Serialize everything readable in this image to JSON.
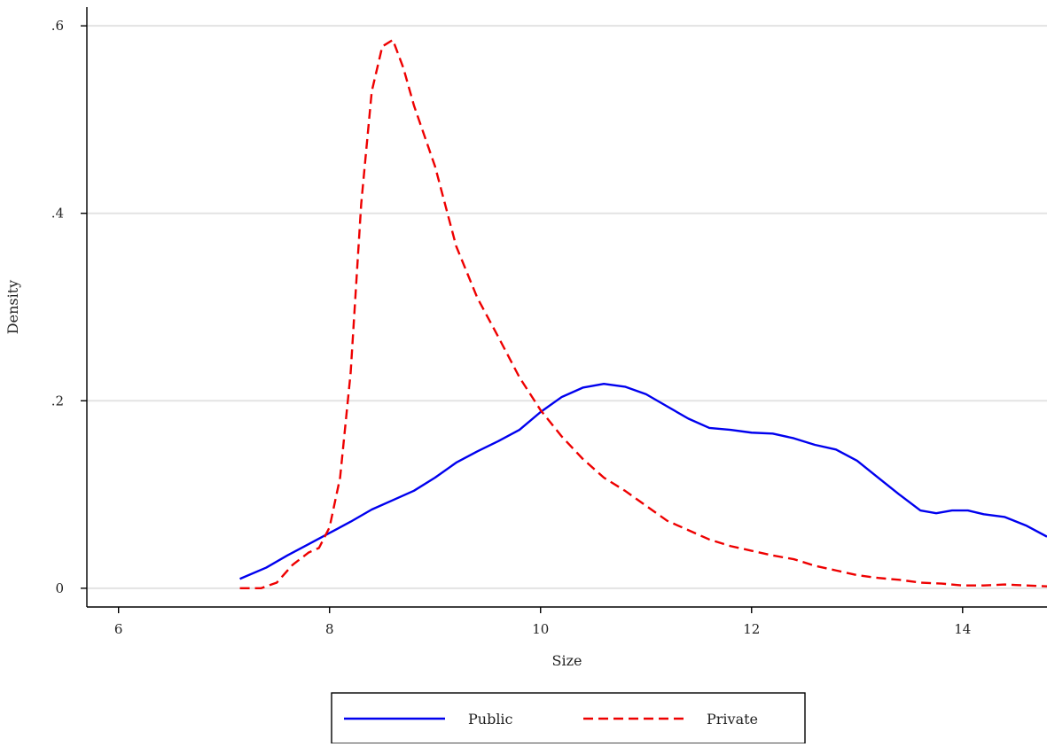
{
  "chart_data": {
    "type": "line",
    "title": "",
    "xlabel": "Size",
    "ylabel": "Density",
    "xlim": [
      5.7,
      14.8
    ],
    "ylim": [
      -0.02,
      0.62
    ],
    "x_ticks": [
      6,
      8,
      10,
      12,
      14
    ],
    "x_tick_labels": [
      "6",
      "8",
      "10",
      "12",
      "14"
    ],
    "y_ticks": [
      0,
      0.2,
      0.4,
      0.6
    ],
    "y_tick_labels": [
      "0",
      ".2",
      ".4",
      ".6"
    ],
    "grid": "horizontal",
    "legend_position": "bottom",
    "series": [
      {
        "name": "Public",
        "color": "#0000ee",
        "style": "solid",
        "x": [
          7.15,
          7.4,
          7.6,
          7.8,
          8.0,
          8.2,
          8.4,
          8.6,
          8.8,
          9.0,
          9.2,
          9.4,
          9.6,
          9.8,
          10.0,
          10.2,
          10.4,
          10.6,
          10.8,
          11.0,
          11.2,
          11.4,
          11.6,
          11.8,
          12.0,
          12.2,
          12.4,
          12.6,
          12.8,
          13.0,
          13.2,
          13.4,
          13.6,
          13.75,
          13.9,
          14.05,
          14.2,
          14.4,
          14.6,
          14.8
        ],
        "y": [
          0.01,
          0.022,
          0.035,
          0.047,
          0.059,
          0.071,
          0.084,
          0.094,
          0.104,
          0.118,
          0.134,
          0.146,
          0.157,
          0.169,
          0.188,
          0.204,
          0.214,
          0.218,
          0.215,
          0.207,
          0.194,
          0.181,
          0.171,
          0.169,
          0.166,
          0.165,
          0.16,
          0.153,
          0.148,
          0.136,
          0.118,
          0.1,
          0.083,
          0.08,
          0.083,
          0.083,
          0.079,
          0.076,
          0.067,
          0.055
        ]
      },
      {
        "name": "Private",
        "color": "#ee0000",
        "style": "dashed",
        "x": [
          7.15,
          7.35,
          7.5,
          7.65,
          7.8,
          7.9,
          8.0,
          8.1,
          8.2,
          8.3,
          8.4,
          8.5,
          8.6,
          8.7,
          8.8,
          9.0,
          9.2,
          9.4,
          9.6,
          9.8,
          10.0,
          10.2,
          10.4,
          10.6,
          10.8,
          11.0,
          11.2,
          11.4,
          11.6,
          11.8,
          12.0,
          12.2,
          12.4,
          12.6,
          12.8,
          13.0,
          13.2,
          13.4,
          13.6,
          13.8,
          14.0,
          14.2,
          14.4,
          14.6,
          14.8
        ],
        "y": [
          0.0,
          0.0,
          0.006,
          0.025,
          0.038,
          0.043,
          0.065,
          0.118,
          0.23,
          0.41,
          0.53,
          0.578,
          0.585,
          0.555,
          0.515,
          0.45,
          0.365,
          0.31,
          0.268,
          0.225,
          0.19,
          0.162,
          0.138,
          0.118,
          0.104,
          0.088,
          0.072,
          0.062,
          0.052,
          0.045,
          0.04,
          0.035,
          0.031,
          0.024,
          0.019,
          0.014,
          0.011,
          0.009,
          0.006,
          0.005,
          0.003,
          0.003,
          0.004,
          0.003,
          0.002
        ]
      }
    ]
  },
  "legend": {
    "items": [
      {
        "label": "Public",
        "color": "#0000ee",
        "style": "solid"
      },
      {
        "label": "Private",
        "color": "#ee0000",
        "style": "dashed"
      }
    ]
  }
}
